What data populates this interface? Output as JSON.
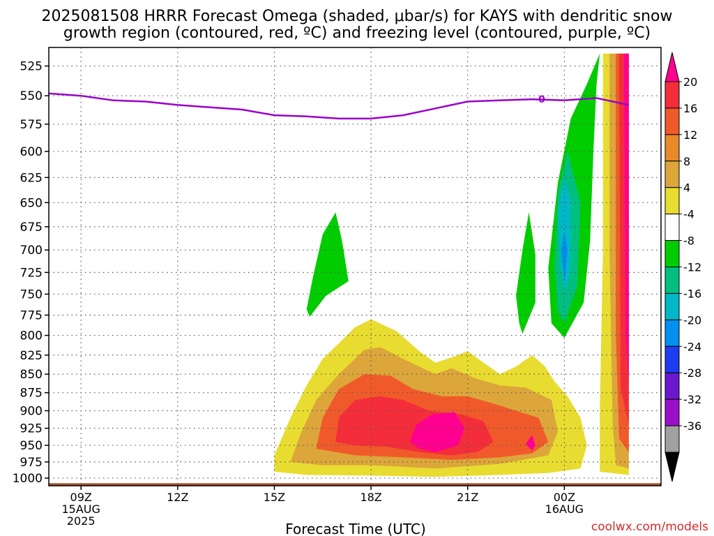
{
  "chart_data": {
    "type": "heatmap",
    "title_lines": [
      "2025081508 HRRR Forecast Omega (shaded, μbar/s) for KAYS with dendritic snow",
      "growth region (contoured, red, ºC) and freezing level (contoured, purple, ºC)"
    ],
    "xlabel": "Forecast Time (UTC)",
    "credit": "coolwx.com/models",
    "x_range_hours": [
      8,
      27
    ],
    "x_ticks": [
      {
        "hour": 9,
        "lines": [
          "09Z",
          "15AUG",
          "2025"
        ]
      },
      {
        "hour": 12,
        "lines": [
          "12Z"
        ]
      },
      {
        "hour": 15,
        "lines": [
          "15Z"
        ]
      },
      {
        "hour": 18,
        "lines": [
          "18Z"
        ]
      },
      {
        "hour": 21,
        "lines": [
          "21Z"
        ]
      },
      {
        "hour": 24,
        "lines": [
          "00Z",
          "16AUG"
        ]
      }
    ],
    "y_range_mb": [
      1012,
      510
    ],
    "y_scale": "log-pressure",
    "y_ticks": [
      525,
      550,
      575,
      600,
      625,
      650,
      675,
      700,
      725,
      750,
      775,
      800,
      825,
      850,
      875,
      900,
      925,
      950,
      975,
      1000
    ],
    "grid": true,
    "colorbar": {
      "labels": [
        "20",
        "16",
        "12",
        "8",
        "4",
        "-4",
        "-8",
        "-12",
        "-16",
        "-20",
        "-24",
        "-28",
        "-32",
        "-36"
      ],
      "colors": [
        "#ff0090",
        "#f42d3a",
        "#f05a2a",
        "#e88a2a",
        "#dca63a",
        "#e8dc30",
        "#ffffff",
        "#00cc00",
        "#00bf80",
        "#00b8c8",
        "#0090f0",
        "#1e3cf0",
        "#6a18d0",
        "#9a10c8",
        "#a0a0a0",
        "#000000"
      ]
    },
    "surface_color": "#a0522d",
    "freezing_level": {
      "label": "0",
      "color": "#9900cc",
      "points": [
        [
          8,
          548
        ],
        [
          9,
          550
        ],
        [
          10,
          554
        ],
        [
          11,
          555
        ],
        [
          12,
          558
        ],
        [
          13,
          560
        ],
        [
          14,
          562
        ],
        [
          15,
          567
        ],
        [
          16,
          568
        ],
        [
          17,
          570
        ],
        [
          18,
          570
        ],
        [
          19,
          567
        ],
        [
          20,
          561
        ],
        [
          21,
          555
        ],
        [
          22,
          554
        ],
        [
          23,
          553
        ],
        [
          24,
          554
        ],
        [
          25,
          552
        ],
        [
          26,
          558
        ]
      ]
    },
    "omega_regions": [
      {
        "name": "rising-mid-17z",
        "color": "#00cc00",
        "points": [
          [
            16.1,
            777
          ],
          [
            16.6,
            752
          ],
          [
            17.3,
            735
          ],
          [
            17.1,
            690
          ],
          [
            16.9,
            660
          ],
          [
            16.5,
            683
          ],
          [
            16.2,
            730
          ],
          [
            16.0,
            768
          ]
        ]
      },
      {
        "name": "rising-mid-22z",
        "color": "#00cc00",
        "points": [
          [
            22.7,
            798
          ],
          [
            23.1,
            760
          ],
          [
            23.1,
            705
          ],
          [
            22.9,
            660
          ],
          [
            22.7,
            700
          ],
          [
            22.5,
            752
          ],
          [
            22.6,
            785
          ]
        ]
      },
      {
        "name": "rising-00z-outer",
        "color": "#00cc00",
        "points": [
          [
            24.0,
            803
          ],
          [
            24.6,
            760
          ],
          [
            24.8,
            690
          ],
          [
            24.9,
            600
          ],
          [
            25.0,
            540
          ],
          [
            25.1,
            515
          ],
          [
            24.7,
            540
          ],
          [
            24.2,
            570
          ],
          [
            23.8,
            630
          ],
          [
            23.5,
            720
          ],
          [
            23.6,
            785
          ]
        ]
      },
      {
        "name": "rising-00z-mid",
        "color": "#00bf80",
        "points": [
          [
            24.0,
            785
          ],
          [
            24.4,
            740
          ],
          [
            24.5,
            650
          ],
          [
            24.1,
            600
          ],
          [
            23.8,
            640
          ],
          [
            23.7,
            720
          ],
          [
            23.8,
            770
          ]
        ]
      },
      {
        "name": "rising-00z-inner",
        "color": "#00b8c8",
        "points": [
          [
            24.0,
            750
          ],
          [
            24.2,
            720
          ],
          [
            24.2,
            650
          ],
          [
            24.0,
            625
          ],
          [
            23.8,
            660
          ],
          [
            23.9,
            720
          ]
        ]
      },
      {
        "name": "rising-00z-core",
        "color": "#0090f0",
        "points": [
          [
            24.0,
            738
          ],
          [
            24.1,
            700
          ],
          [
            24.0,
            680
          ],
          [
            23.9,
            700
          ]
        ]
      },
      {
        "name": "sink-low-4",
        "color": "#e8dc30",
        "points": [
          [
            15.0,
            990
          ],
          [
            15.0,
            965
          ],
          [
            15.5,
            910
          ],
          [
            16.0,
            865
          ],
          [
            16.5,
            830
          ],
          [
            17.0,
            810
          ],
          [
            17.5,
            790
          ],
          [
            18.0,
            780
          ],
          [
            18.8,
            795
          ],
          [
            19.5,
            820
          ],
          [
            20.0,
            835
          ],
          [
            20.5,
            828
          ],
          [
            21.0,
            820
          ],
          [
            21.5,
            835
          ],
          [
            22.0,
            850
          ],
          [
            22.5,
            840
          ],
          [
            23.0,
            825
          ],
          [
            23.4,
            840
          ],
          [
            23.7,
            860
          ],
          [
            24.1,
            880
          ],
          [
            24.5,
            910
          ],
          [
            24.7,
            950
          ],
          [
            24.5,
            985
          ],
          [
            23.5,
            992
          ],
          [
            22.0,
            995
          ],
          [
            20.0,
            998
          ],
          [
            18.0,
            996
          ],
          [
            16.0,
            995
          ]
        ]
      },
      {
        "name": "sink-low-8",
        "color": "#dca63a",
        "points": [
          [
            15.5,
            975
          ],
          [
            15.8,
            935
          ],
          [
            16.3,
            885
          ],
          [
            17.0,
            850
          ],
          [
            17.8,
            818
          ],
          [
            18.3,
            815
          ],
          [
            19.0,
            830
          ],
          [
            20.0,
            850
          ],
          [
            20.5,
            842
          ],
          [
            21.2,
            855
          ],
          [
            22.0,
            865
          ],
          [
            22.8,
            868
          ],
          [
            23.6,
            885
          ],
          [
            23.8,
            930
          ],
          [
            23.5,
            965
          ],
          [
            22.0,
            978
          ],
          [
            20.0,
            985
          ],
          [
            18.0,
            980
          ],
          [
            16.5,
            980
          ]
        ]
      },
      {
        "name": "sink-low-12",
        "color": "#f05a2a",
        "points": [
          [
            16.3,
            955
          ],
          [
            16.5,
            910
          ],
          [
            17.0,
            870
          ],
          [
            17.8,
            850
          ],
          [
            18.6,
            852
          ],
          [
            19.3,
            870
          ],
          [
            20.2,
            880
          ],
          [
            21.0,
            880
          ],
          [
            21.8,
            890
          ],
          [
            22.5,
            900
          ],
          [
            23.2,
            910
          ],
          [
            23.5,
            945
          ],
          [
            23.0,
            962
          ],
          [
            22.0,
            968
          ],
          [
            20.5,
            972
          ],
          [
            19.0,
            968
          ],
          [
            17.5,
            965
          ]
        ]
      },
      {
        "name": "sink-low-16",
        "color": "#f42d3a",
        "points": [
          [
            16.9,
            945
          ],
          [
            17.0,
            910
          ],
          [
            17.5,
            885
          ],
          [
            18.3,
            880
          ],
          [
            19.0,
            885
          ],
          [
            19.8,
            900
          ],
          [
            20.8,
            905
          ],
          [
            21.5,
            915
          ],
          [
            21.8,
            945
          ],
          [
            21.3,
            960
          ],
          [
            20.5,
            965
          ],
          [
            19.5,
            960
          ],
          [
            18.5,
            952
          ],
          [
            17.5,
            950
          ]
        ]
      },
      {
        "name": "sink-low-20",
        "color": "#ff0090",
        "points": [
          [
            19.2,
            945
          ],
          [
            19.4,
            920
          ],
          [
            19.9,
            905
          ],
          [
            20.6,
            902
          ],
          [
            20.9,
            925
          ],
          [
            20.7,
            950
          ],
          [
            20.0,
            960
          ],
          [
            19.5,
            955
          ]
        ]
      },
      {
        "name": "sink-low-20b",
        "color": "#ff0090",
        "points": [
          [
            22.8,
            948
          ],
          [
            23.0,
            935
          ],
          [
            23.1,
            950
          ],
          [
            23.0,
            958
          ]
        ]
      },
      {
        "name": "sink-edge-4",
        "color": "#e8dc30",
        "points": [
          [
            25.2,
            515
          ],
          [
            25.2,
            700
          ],
          [
            25.1,
            900
          ],
          [
            25.1,
            990
          ],
          [
            26.0,
            995
          ],
          [
            26.0,
            515
          ]
        ]
      },
      {
        "name": "sink-edge-8",
        "color": "#dca63a",
        "points": [
          [
            25.4,
            515
          ],
          [
            25.4,
            700
          ],
          [
            25.5,
            920
          ],
          [
            25.6,
            980
          ],
          [
            26.0,
            985
          ],
          [
            26.0,
            515
          ]
        ]
      },
      {
        "name": "sink-edge-12",
        "color": "#f05a2a",
        "points": [
          [
            25.6,
            515
          ],
          [
            25.6,
            800
          ],
          [
            25.7,
            940
          ],
          [
            26.0,
            960
          ],
          [
            26.0,
            515
          ]
        ]
      },
      {
        "name": "sink-edge-16",
        "color": "#f42d3a",
        "points": [
          [
            25.7,
            515
          ],
          [
            25.75,
            870
          ],
          [
            26.0,
            920
          ],
          [
            26.0,
            515
          ]
        ]
      },
      {
        "name": "sink-edge-20",
        "color": "#ff0090",
        "points": [
          [
            25.85,
            515
          ],
          [
            25.9,
            800
          ],
          [
            26.0,
            860
          ],
          [
            26.0,
            515
          ]
        ]
      }
    ]
  }
}
